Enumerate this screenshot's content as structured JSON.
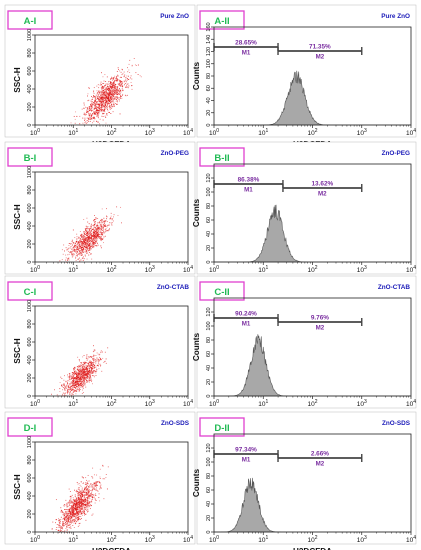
{
  "figure": {
    "common": {
      "scatter_ylabel": "SSC-H",
      "hist_ylabel": "Counts",
      "xlabel": "H2DCFDA",
      "xtick_labels": [
        "10^0",
        "10^1",
        "10^2",
        "10^3",
        "10^4"
      ],
      "scatter_ytick_labels": [
        "0",
        "200",
        "400",
        "600",
        "800",
        "1000"
      ],
      "hist_ytick_labels": [
        "0",
        "20",
        "40",
        "60",
        "80",
        "100",
        "120",
        "140",
        "160"
      ],
      "gate_names": [
        "M1",
        "M2"
      ]
    },
    "colors": {
      "panel_label_text": "#22bb55",
      "panel_label_border": "#e040d0",
      "sample_label": "#1a1ab8",
      "gate_label": "#7a2ea0",
      "scatter_dots": "#dd1111",
      "histogram_fill": "#a8a8a8",
      "histogram_outline": "#555555",
      "gate_line": "#444444"
    }
  },
  "chart_data": [
    {
      "type": "scatter",
      "panel_label": "A-I",
      "sample": "Pure ZnO",
      "xlabel": "H2DCFDA",
      "ylabel": "SSC-H",
      "xscale": "log",
      "xlim": [
        1,
        10000
      ],
      "ylim": [
        0,
        1000
      ],
      "xticks": [
        "10^0",
        "10^1",
        "10^2",
        "10^3",
        "10^4"
      ],
      "yticks": [
        "0",
        "200",
        "400",
        "600",
        "800",
        "1000"
      ],
      "point_cloud": {
        "center_log10_x": 1.85,
        "center_y": 310,
        "spread_log10_x": 0.28,
        "spread_y": 135,
        "correlation": 0.75,
        "count": 1100
      }
    },
    {
      "type": "bar",
      "subtype": "histogram",
      "panel_label": "A-II",
      "sample": "Pure ZnO",
      "xlabel": "H2DCFDA",
      "ylabel": "Counts",
      "xscale": "log",
      "xlim": [
        1,
        10000
      ],
      "ylim": [
        0,
        160
      ],
      "xticks": [
        "10^0",
        "10^1",
        "10^2",
        "10^3",
        "10^4"
      ],
      "yticks": [
        "0",
        "20",
        "40",
        "60",
        "80",
        "100",
        "120",
        "140",
        "160"
      ],
      "histogram": {
        "peak_log10_x": 1.67,
        "peak_count": 80,
        "width_log10": 0.17
      },
      "gates": [
        {
          "name": "M1",
          "percent": "28.65%",
          "start_log10": 0,
          "end_log10": 1.3
        },
        {
          "name": "M2",
          "percent": "71.35%",
          "start_log10": 1.3,
          "end_log10": 3.0
        }
      ]
    },
    {
      "type": "scatter",
      "panel_label": "B-I",
      "sample": "ZnO-PEG",
      "xlabel": "H2DCFDA",
      "ylabel": "SSC-H",
      "xscale": "log",
      "xlim": [
        1,
        10000
      ],
      "ylim": [
        0,
        1000
      ],
      "xticks": [
        "10^0",
        "10^1",
        "10^2",
        "10^3",
        "10^4"
      ],
      "yticks": [
        "0",
        "200",
        "400",
        "600",
        "800",
        "1000"
      ],
      "point_cloud": {
        "center_log10_x": 1.4,
        "center_y": 260,
        "spread_log10_x": 0.26,
        "spread_y": 115,
        "correlation": 0.75,
        "count": 900
      }
    },
    {
      "type": "bar",
      "subtype": "histogram",
      "panel_label": "B-II",
      "sample": "ZnO-PEG",
      "xlabel": "H2DCFDA",
      "ylabel": "Counts",
      "xscale": "log",
      "xlim": [
        1,
        10000
      ],
      "ylim": [
        0,
        140
      ],
      "xticks": [
        "10^0",
        "10^1",
        "10^2",
        "10^3",
        "10^4"
      ],
      "yticks": [
        "0",
        "20",
        "40",
        "60",
        "80",
        "100",
        "120"
      ],
      "histogram": {
        "peak_log10_x": 1.25,
        "peak_count": 72,
        "width_log10": 0.16
      },
      "gates": [
        {
          "name": "M1",
          "percent": "86.38%",
          "start_log10": 0,
          "end_log10": 1.4
        },
        {
          "name": "M2",
          "percent": "13.62%",
          "start_log10": 1.4,
          "end_log10": 3.0
        }
      ]
    },
    {
      "type": "scatter",
      "panel_label": "C-I",
      "sample": "ZnO-CTAB",
      "xlabel": "H2DCFDA",
      "ylabel": "SSC-H",
      "xscale": "log",
      "xlim": [
        1,
        10000
      ],
      "ylim": [
        0,
        1000
      ],
      "xticks": [
        "10^0",
        "10^1",
        "10^2",
        "10^3",
        "10^4"
      ],
      "yticks": [
        "0",
        "200",
        "400",
        "600",
        "800",
        "1000"
      ],
      "point_cloud": {
        "center_log10_x": 1.2,
        "center_y": 230,
        "spread_log10_x": 0.24,
        "spread_y": 110,
        "correlation": 0.75,
        "count": 900
      }
    },
    {
      "type": "bar",
      "subtype": "histogram",
      "panel_label": "C-II",
      "sample": "ZnO-CTAB",
      "xlabel": "H2DCFDA",
      "ylabel": "Counts",
      "xscale": "log",
      "xlim": [
        1,
        10000
      ],
      "ylim": [
        0,
        140
      ],
      "xticks": [
        "10^0",
        "10^1",
        "10^2",
        "10^3",
        "10^4"
      ],
      "yticks": [
        "0",
        "20",
        "40",
        "60",
        "80",
        "100",
        "120"
      ],
      "histogram": {
        "peak_log10_x": 0.9,
        "peak_count": 82,
        "width_log10": 0.15
      },
      "gates": [
        {
          "name": "M1",
          "percent": "90.24%",
          "start_log10": 0,
          "end_log10": 1.3
        },
        {
          "name": "M2",
          "percent": "9.76%",
          "start_log10": 1.3,
          "end_log10": 3.0
        }
      ]
    },
    {
      "type": "scatter",
      "panel_label": "D-I",
      "sample": "ZnO-SDS",
      "xlabel": "H2DCFDA",
      "ylabel": "SSC-H",
      "xscale": "log",
      "xlim": [
        1,
        10000
      ],
      "ylim": [
        0,
        1000
      ],
      "xticks": [
        "10^0",
        "10^1",
        "10^2",
        "10^3",
        "10^4"
      ],
      "yticks": [
        "0",
        "200",
        "400",
        "600",
        "800",
        "1000"
      ],
      "point_cloud": {
        "center_log10_x": 1.1,
        "center_y": 290,
        "spread_log10_x": 0.26,
        "spread_y": 140,
        "correlation": 0.78,
        "count": 1100
      }
    },
    {
      "type": "bar",
      "subtype": "histogram",
      "panel_label": "D-II",
      "sample": "ZnO-SDS",
      "xlabel": "H2DCFDA",
      "ylabel": "Counts",
      "xscale": "log",
      "xlim": [
        1,
        10000
      ],
      "ylim": [
        0,
        140
      ],
      "xticks": [
        "10^0",
        "10^1",
        "10^2",
        "10^3",
        "10^4"
      ],
      "yticks": [
        "0",
        "20",
        "40",
        "60",
        "80",
        "100",
        "120"
      ],
      "histogram": {
        "peak_log10_x": 0.75,
        "peak_count": 70,
        "width_log10": 0.15
      },
      "gates": [
        {
          "name": "M1",
          "percent": "97.34%",
          "start_log10": 0,
          "end_log10": 1.3
        },
        {
          "name": "M2",
          "percent": "2.66%",
          "start_log10": 1.3,
          "end_log10": 3.0
        }
      ]
    }
  ]
}
